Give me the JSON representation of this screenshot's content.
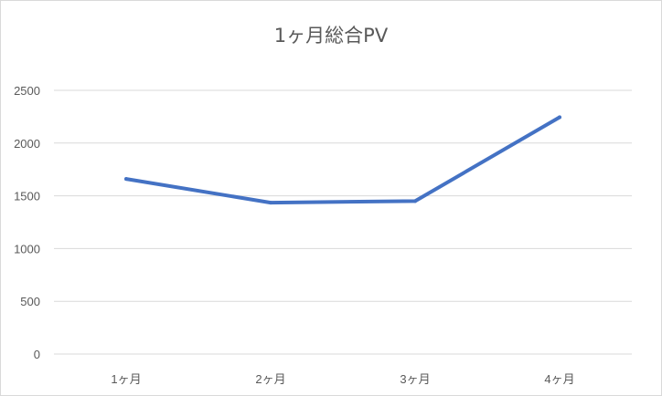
{
  "chart_data": {
    "type": "line",
    "title": "1ヶ月総合PV",
    "xlabel": "",
    "ylabel": "",
    "categories": [
      "1ヶ月",
      "2ヶ月",
      "3ヶ月",
      "4ヶ月"
    ],
    "series": [
      {
        "values": [
          1660,
          1435,
          1450,
          2245
        ],
        "color": "#4472c4"
      }
    ],
    "ylim": [
      0,
      2500
    ],
    "yticks": [
      0,
      500,
      1000,
      1500,
      2000,
      2500
    ],
    "grid": true,
    "legend": "none"
  }
}
